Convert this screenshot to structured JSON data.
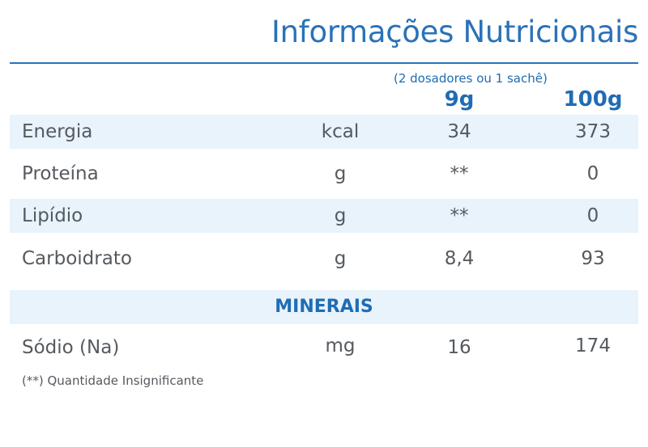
{
  "header": {
    "title": "Informações Nutricionais",
    "serving_note": "(2 dosadores ou 1 sachê)",
    "col_serving": "9g",
    "col_100g": "100g"
  },
  "rows": [
    {
      "name": "Energia",
      "unit": "kcal",
      "serving": "34",
      "per100": "373"
    },
    {
      "name": "Proteína",
      "unit": "g",
      "serving": "**",
      "per100": "0"
    },
    {
      "name": "Lipídio",
      "unit": "g",
      "serving": "**",
      "per100": "0"
    },
    {
      "name": "Carboidrato",
      "unit": "g",
      "serving": "8,4",
      "per100": "93"
    }
  ],
  "minerals": {
    "label": "MINERAIS",
    "rows": [
      {
        "name": "Sódio (Na)",
        "unit": "mg",
        "serving": "16",
        "per100": "174"
      }
    ]
  },
  "footnote": "(**) Quantidade Insignificante",
  "colors": {
    "accent": "#2a72b8",
    "row_shade": "#e8f3fb",
    "text": "#555a5f"
  }
}
